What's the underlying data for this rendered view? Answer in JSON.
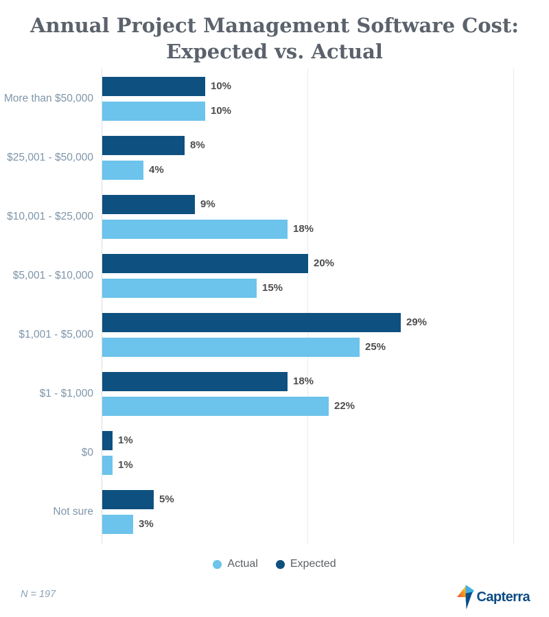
{
  "title": {
    "line1": "Annual Project Management Software Cost:",
    "line2": "Expected vs. Actual"
  },
  "legend": {
    "actual": "Actual",
    "expected": "Expected"
  },
  "footer": {
    "note": "N = 197",
    "brand": "Capterra"
  },
  "colors": {
    "expected_bar": "#0E507F",
    "actual_bar": "#6CC3EB",
    "category_label": "#7E95A9",
    "value_label": "#4D4D4D",
    "title_text": "#5B626C",
    "gridline": "#EAEAEA",
    "brand_navy": "#0C4C84",
    "brand_orange": "#E8542F",
    "brand_yellow": "#FFC83D",
    "brand_lightblue": "#41B0E6"
  },
  "chart_data": {
    "type": "bar",
    "orientation": "horizontal",
    "title": "Annual Project Management Software Cost: Expected vs. Actual",
    "categories": [
      "More than $50,000",
      "$25,001 - $50,000",
      "$10,001 - $25,000",
      "$5,001 - $10,000",
      "$1,001 - $5,000",
      "$1 - $1,000",
      "$0",
      "Not sure"
    ],
    "series": [
      {
        "name": "Expected",
        "color": "#0E507F",
        "values": [
          10,
          8,
          9,
          20,
          29,
          18,
          1,
          5
        ]
      },
      {
        "name": "Actual",
        "color": "#6CC3EB",
        "values": [
          10,
          4,
          18,
          15,
          25,
          22,
          1,
          3
        ]
      }
    ],
    "value_suffix": "%",
    "xlim": [
      0,
      40
    ],
    "gridlines_pct": [
      0,
      20,
      40
    ],
    "grid": true,
    "legend_position": "bottom",
    "sample_note": "N = 197"
  }
}
